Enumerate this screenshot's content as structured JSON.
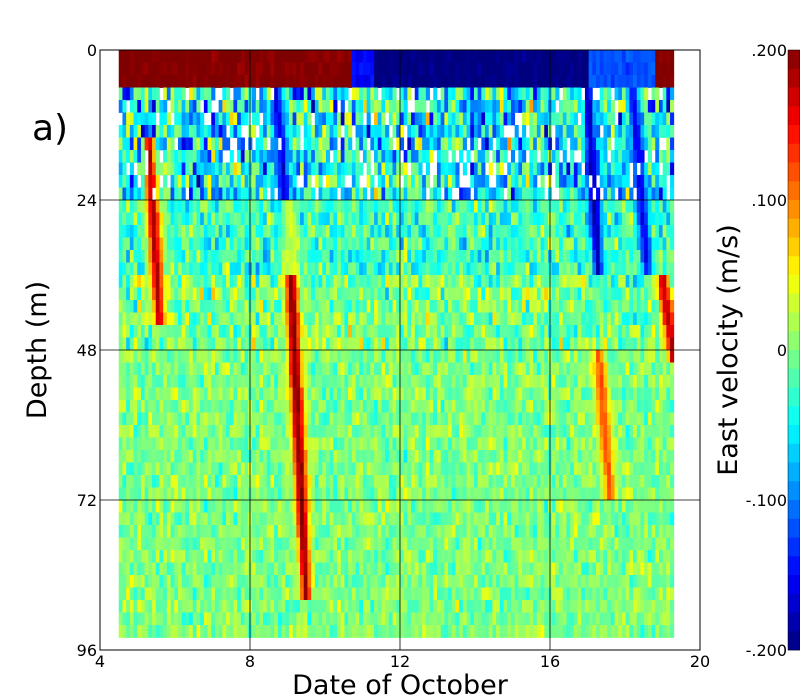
{
  "chart_data": {
    "type": "heatmap",
    "panel_label": "a)",
    "xlabel": "Date of October",
    "ylabel": "Depth (m)",
    "xlim": [
      4,
      20
    ],
    "ylim": [
      0,
      96
    ],
    "y_inverted": true,
    "x_ticks": [
      4,
      8,
      12,
      16,
      20
    ],
    "x_tick_labels": [
      "4",
      "8",
      "12",
      "16",
      "20"
    ],
    "y_ticks": [
      0,
      24,
      48,
      72,
      96
    ],
    "y_tick_labels": [
      "0",
      "24",
      "48",
      "72",
      "96"
    ],
    "grid": true,
    "data_x_range": [
      4.5,
      19.3
    ],
    "data_depth_range": [
      0,
      94
    ],
    "colorbar": {
      "label": "East velocity (m/s)",
      "range": [
        -0.2,
        0.2
      ],
      "tick_values": [
        0.2,
        0.1,
        0,
        -0.1,
        -0.2
      ],
      "tick_labels": [
        ".200",
        ".100",
        "0",
        "-.100",
        "-.200"
      ],
      "colormap": "jet",
      "colors": [
        "#00007f",
        "#0000ff",
        "#007fff",
        "#00ffff",
        "#7fff7f",
        "#ffff00",
        "#ff7f00",
        "#ff0000",
        "#7f0000"
      ]
    },
    "surface_layer": {
      "depth_range": [
        0,
        6
      ],
      "segments": [
        {
          "x": [
            4.5,
            10.7
          ],
          "value": 0.2
        },
        {
          "x": [
            10.7,
            11.3
          ],
          "value": -0.15
        },
        {
          "x": [
            11.3,
            17.0
          ],
          "value": -0.2
        },
        {
          "x": [
            17.0,
            18.8
          ],
          "value": -0.12
        },
        {
          "x": [
            18.8,
            19.3
          ],
          "value": 0.2
        }
      ]
    },
    "features": [
      {
        "desc": "eastward jet",
        "x_center": [
          5.3,
          5.6
        ],
        "depth": [
          14,
          44
        ],
        "value": 0.18
      },
      {
        "desc": "westward band",
        "x_center": [
          8.7,
          9.1
        ],
        "depth": [
          6,
          36
        ],
        "value": -0.16
      },
      {
        "desc": "strong eastward plume",
        "x_center": [
          9.0,
          9.5
        ],
        "depth": [
          24,
          88
        ],
        "value": 0.2
      },
      {
        "desc": "westward band",
        "x_center": [
          17.0,
          17.3
        ],
        "depth": [
          6,
          36
        ],
        "value": -0.18
      },
      {
        "desc": "westward band",
        "x_center": [
          18.2,
          18.6
        ],
        "depth": [
          6,
          36
        ],
        "value": -0.16
      },
      {
        "desc": "eastward patch",
        "x_center": [
          17.3,
          17.6
        ],
        "depth": [
          48,
          72
        ],
        "value": 0.12
      },
      {
        "desc": "eastward edge",
        "x_center": [
          19.0,
          19.3
        ],
        "depth": [
          36,
          50
        ],
        "value": 0.18
      }
    ]
  }
}
